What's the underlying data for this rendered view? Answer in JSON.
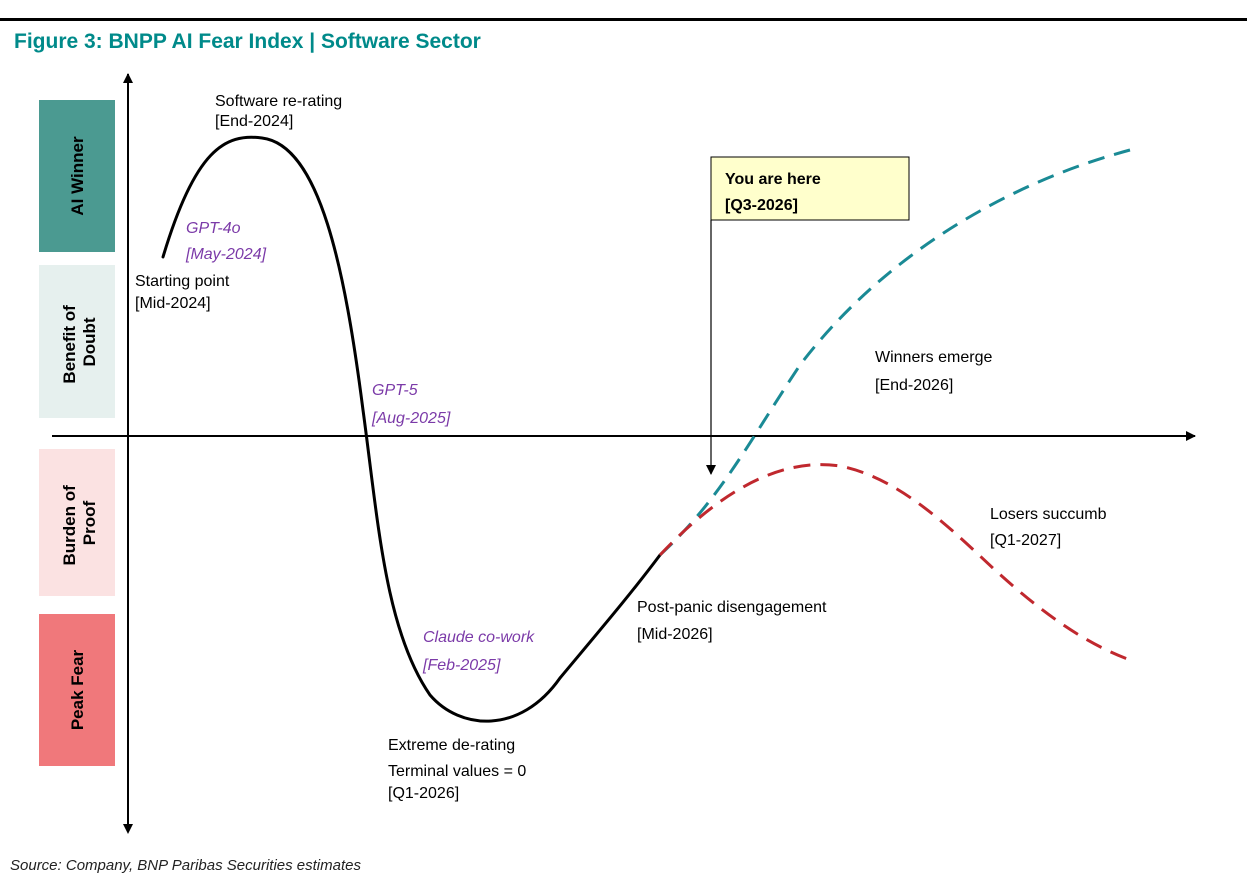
{
  "title": "Figure 3: BNPP AI Fear Index | Software Sector",
  "source": "Source:  Company, BNP Paribas Securities estimates",
  "zones": [
    {
      "label": "AI Winner",
      "color": "#4b9a91",
      "text_color": "#000000"
    },
    {
      "label": "Benefit of Doubt",
      "color": "#e6f0ee",
      "text_color": "#000000"
    },
    {
      "label": "Burden of Proof",
      "color": "#fbe2e2",
      "text_color": "#000000"
    },
    {
      "label": "Peak Fear",
      "color": "#f0787b",
      "text_color": "#000000"
    }
  ],
  "annotations": {
    "software_rerating": [
      "Software re-rating",
      "[End-2024]"
    ],
    "gpt4o": [
      "GPT-4o",
      "[May-2024]"
    ],
    "starting_point": [
      "Starting point",
      "[Mid-2024]"
    ],
    "gpt5": [
      "GPT-5",
      "[Aug-2025]"
    ],
    "claude": [
      "Claude co-work",
      "[Feb-2025]"
    ],
    "extreme": [
      "Extreme de-rating",
      "Terminal values = 0",
      "[Q1-2026]"
    ],
    "post_panic": [
      "Post-panic disengagement",
      "[Mid-2026]"
    ],
    "winners": [
      "Winners emerge",
      "[End-2026]"
    ],
    "losers": [
      "Losers succumb",
      "[Q1-2027]"
    ]
  },
  "callout": {
    "lines": [
      "You are here",
      "[Q3-2026]"
    ],
    "fill": "#ffffcc"
  },
  "colors": {
    "title": "#008a8a",
    "main_curve": "#000000",
    "winners_path": "#1a8a95",
    "losers_path": "#c0282e",
    "model_events": "#7b3aa8"
  }
}
